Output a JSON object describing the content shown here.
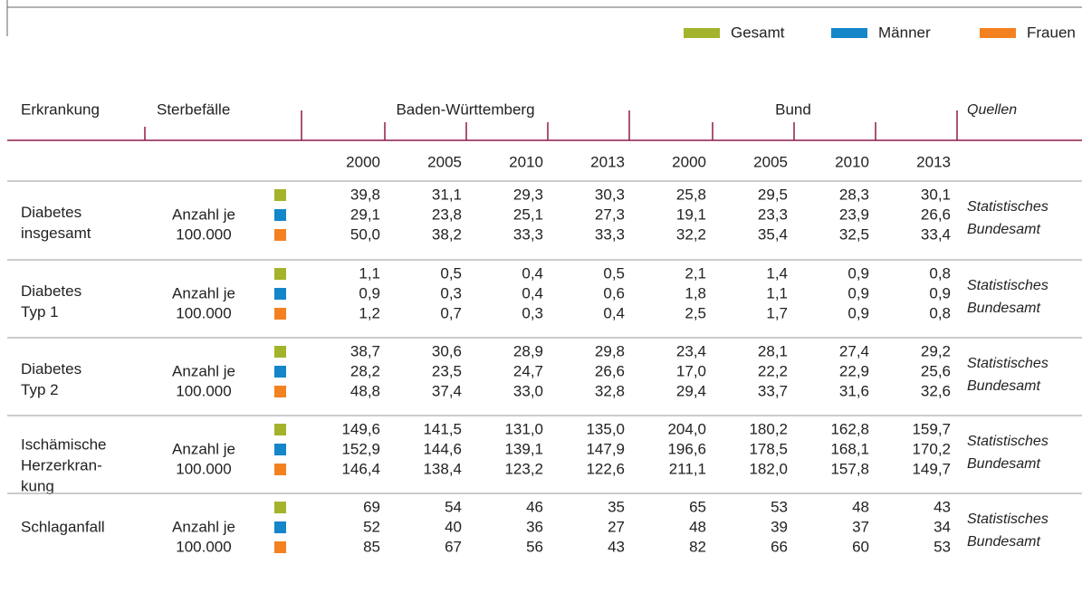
{
  "legend": [
    {
      "label": "Gesamt",
      "color": "#a3b32c"
    },
    {
      "label": "Männer",
      "color": "#1486c9"
    },
    {
      "label": "Frauen",
      "color": "#f48120"
    }
  ],
  "header": {
    "disease": "Erkrankung",
    "deaths": "Sterbefälle",
    "region1": "Baden-Württemberg",
    "region2": "Bund",
    "sources": "Quellen"
  },
  "years": [
    "2000",
    "2005",
    "2010",
    "2013",
    "2000",
    "2005",
    "2010",
    "2013"
  ],
  "rows": [
    {
      "disease": [
        "Diabetes",
        "insgesamt"
      ],
      "unit": [
        "Anzahl je",
        "100.000"
      ],
      "values": [
        [
          "39,8",
          "31,1",
          "29,3",
          "30,3",
          "25,8",
          "29,5",
          "28,3",
          "30,1"
        ],
        [
          "29,1",
          "23,8",
          "25,1",
          "27,3",
          "19,1",
          "23,3",
          "23,9",
          "26,6"
        ],
        [
          "50,0",
          "38,2",
          "33,3",
          "33,3",
          "32,2",
          "35,4",
          "32,5",
          "33,4"
        ]
      ],
      "source": [
        "Statistisches",
        "Bundesamt"
      ]
    },
    {
      "disease": [
        "Diabetes",
        "Typ 1"
      ],
      "unit": [
        "Anzahl je",
        "100.000"
      ],
      "values": [
        [
          "1,1",
          "0,5",
          "0,4",
          "0,5",
          "2,1",
          "1,4",
          "0,9",
          "0,8"
        ],
        [
          "0,9",
          "0,3",
          "0,4",
          "0,6",
          "1,8",
          "1,1",
          "0,9",
          "0,9"
        ],
        [
          "1,2",
          "0,7",
          "0,3",
          "0,4",
          "2,5",
          "1,7",
          "0,9",
          "0,8"
        ]
      ],
      "source": [
        "Statistisches",
        "Bundesamt"
      ]
    },
    {
      "disease": [
        "Diabetes",
        "Typ 2"
      ],
      "unit": [
        "Anzahl je",
        "100.000"
      ],
      "values": [
        [
          "38,7",
          "30,6",
          "28,9",
          "29,8",
          "23,4",
          "28,1",
          "27,4",
          "29,2"
        ],
        [
          "28,2",
          "23,5",
          "24,7",
          "26,6",
          "17,0",
          "22,2",
          "22,9",
          "25,6"
        ],
        [
          "48,8",
          "37,4",
          "33,0",
          "32,8",
          "29,4",
          "33,7",
          "31,6",
          "32,6"
        ]
      ],
      "source": [
        "Statistisches",
        "Bundesamt"
      ]
    },
    {
      "disease": [
        "Ischämische",
        "Herzerkran-",
        "kung"
      ],
      "unit": [
        "Anzahl je",
        "100.000"
      ],
      "values": [
        [
          "149,6",
          "141,5",
          "131,0",
          "135,0",
          "204,0",
          "180,2",
          "162,8",
          "159,7"
        ],
        [
          "152,9",
          "144,6",
          "139,1",
          "147,9",
          "196,6",
          "178,5",
          "168,1",
          "170,2"
        ],
        [
          "146,4",
          "138,4",
          "123,2",
          "122,6",
          "211,1",
          "182,0",
          "157,8",
          "149,7"
        ]
      ],
      "source": [
        "Statistisches",
        "Bundesamt"
      ]
    },
    {
      "disease": [
        "Schlaganfall"
      ],
      "unit": [
        "Anzahl je",
        "100.000"
      ],
      "values": [
        [
          "69",
          "54",
          "46",
          "35",
          "65",
          "53",
          "48",
          "43"
        ],
        [
          "52",
          "40",
          "36",
          "27",
          "48",
          "39",
          "37",
          "34"
        ],
        [
          "85",
          "67",
          "56",
          "43",
          "82",
          "66",
          "60",
          "53"
        ]
      ],
      "source": [
        "Statistisches",
        "Bundesamt"
      ]
    }
  ]
}
